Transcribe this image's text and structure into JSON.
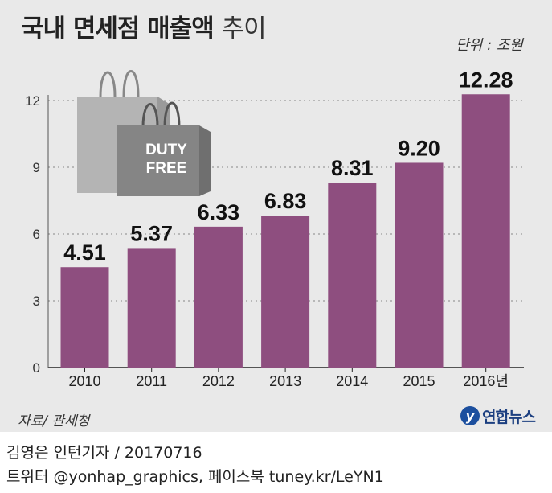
{
  "title_main": "국내 면세점 매출액",
  "title_sub": "추이",
  "unit": "단위 : 조원",
  "source": "자료/ 관세청",
  "logo_text": "연합뉴스",
  "bag_label_line1": "DUTY",
  "bag_label_line2": "FREE",
  "credit": "김영은 인턴기자 / 20170716",
  "social": "트위터 @yonhap_graphics, 페이스북 tuney.kr/LeYN1",
  "colors": {
    "bar": "#8e4e7f",
    "panel": "#e9e9e9",
    "grid": "#9a9a9a",
    "bag_front": "#858585",
    "bag_back": "#b4b4b4"
  },
  "chart_data": {
    "type": "bar",
    "categories": [
      "2010",
      "2011",
      "2012",
      "2013",
      "2014",
      "2015",
      "2016년"
    ],
    "values": [
      4.51,
      5.37,
      6.33,
      6.83,
      8.31,
      9.2,
      12.28
    ],
    "value_labels": [
      "4.51",
      "5.37",
      "6.33",
      "6.83",
      "8.31",
      "9.20",
      "12.28"
    ],
    "yticks": [
      "0",
      "3",
      "6",
      "9",
      "12"
    ],
    "ylim": [
      0,
      12.28
    ],
    "grid": true,
    "ylabel": "",
    "xlabel": ""
  }
}
